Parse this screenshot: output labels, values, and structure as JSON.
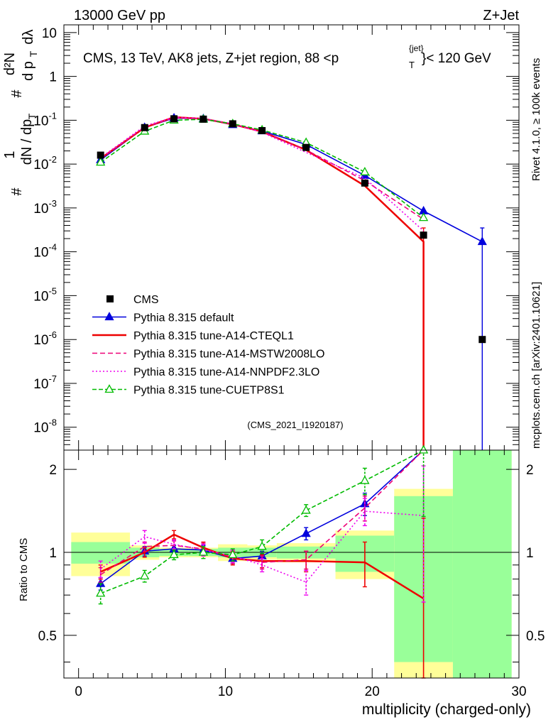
{
  "header": {
    "left": "13000 GeV pp",
    "right": "Z+Jet"
  },
  "side_labels": {
    "rivet": "Rivet 4.1.0, ≥ 100k events",
    "mcplots": "mcplots.cern.ch [arXiv:2401.10621]"
  },
  "chart_data": {
    "type": "line",
    "title": "CMS, 13 TeV, AK8 jets, Z+jet region, 88 < p_T^{jet} < 120 GeV",
    "title_parts": {
      "main": "CMS, 13 TeV, AK8 jets, Z+jet region, 88 <p",
      "sup": "{jet}",
      "sub": "T",
      "tail": "}< 120 GeV"
    },
    "ylabel_parts": {
      "hash": "#",
      "one": "1",
      "dN": "dN / dp",
      "T": "T",
      "d2N": "d²N",
      "dpdl": "d p",
      "lambda": "dλ"
    },
    "xlabel": "multiplicity (charged-only)",
    "ratio_ylabel": "Ratio to CMS",
    "analysis_id": "(CMS_2021_I1920187)",
    "xlim": [
      -1,
      30
    ],
    "ylim_log": [
      3e-09,
      15
    ],
    "ratio_ylim": [
      0.35,
      2.35
    ],
    "x_ticks": [
      "0",
      "10",
      "20",
      "30"
    ],
    "y_tick_labels": [
      {
        "v": 1e-08,
        "base": "10",
        "exp": "-8"
      },
      {
        "v": 1e-07,
        "base": "10",
        "exp": "-7"
      },
      {
        "v": 1e-06,
        "base": "10",
        "exp": "-6"
      },
      {
        "v": 1e-05,
        "base": "10",
        "exp": "-5"
      },
      {
        "v": 0.0001,
        "base": "10",
        "exp": "-4"
      },
      {
        "v": 0.001,
        "base": "10",
        "exp": "-3"
      },
      {
        "v": 0.01,
        "base": "10",
        "exp": "-2"
      },
      {
        "v": 0.1,
        "base": "10",
        "exp": "-1"
      },
      {
        "v": 1,
        "base": "1",
        "exp": ""
      },
      {
        "v": 10,
        "base": "10",
        "exp": ""
      }
    ],
    "ratio_tick_labels": [
      "0.5",
      "1",
      "2"
    ],
    "legend": [
      "CMS",
      "Pythia 8.315 default",
      "Pythia 8.315 tune-A14-CTEQL1",
      "Pythia 8.315 tune-A14-MSTW2008LO",
      "Pythia 8.315 tune-A14-NNPDF2.3LO",
      "Pythia 8.315 tune-CUETP8S1"
    ],
    "data_bins": [
      {
        "lo": -0.5,
        "hi": 3.5,
        "x": 1.5,
        "y": 0.016,
        "band_in": 0.09,
        "band_out": 0.18
      },
      {
        "lo": 3.5,
        "hi": 5.5,
        "x": 4.5,
        "y": 0.068,
        "band_in": 0.04,
        "band_out": 0.06
      },
      {
        "lo": 5.5,
        "hi": 7.5,
        "x": 6.5,
        "y": 0.108,
        "band_in": 0.03,
        "band_out": 0.04
      },
      {
        "lo": 7.5,
        "hi": 9.5,
        "x": 8.5,
        "y": 0.106,
        "band_in": 0.03,
        "band_out": 0.04
      },
      {
        "lo": 9.5,
        "hi": 11.5,
        "x": 10.5,
        "y": 0.083,
        "band_in": 0.04,
        "band_out": 0.07
      },
      {
        "lo": 11.5,
        "hi": 13.5,
        "x": 12.5,
        "y": 0.058,
        "band_in": 0.04,
        "band_out": 0.06
      },
      {
        "lo": 13.5,
        "hi": 17.5,
        "x": 15.5,
        "y": 0.024,
        "band_in": 0.05,
        "band_out": 0.08
      },
      {
        "lo": 17.5,
        "hi": 21.5,
        "x": 19.5,
        "y": 0.0037,
        "band_in": 0.15,
        "band_out": 0.2
      },
      {
        "lo": 21.5,
        "hi": 25.5,
        "x": 23.5,
        "y": 0.00024,
        "band_in": 0.6,
        "band_out": 0.7
      },
      {
        "lo": 25.5,
        "hi": 29.5,
        "x": 27.5,
        "y": 1e-06,
        "band_in": 5.0,
        "band_out": 5.0
      }
    ],
    "series": [
      {
        "name": "Pythia 8.315 default",
        "color": "#0000dd",
        "dash": "",
        "marker": "triangle-filled",
        "x": [
          1.5,
          4.5,
          6.5,
          8.5,
          10.5,
          12.5,
          15.5,
          19.5,
          23.5,
          27.5
        ],
        "y": [
          0.0125,
          0.068,
          0.112,
          0.108,
          0.079,
          0.057,
          0.028,
          0.0055,
          0.00085,
          0.00017
        ],
        "yerr_hi": [
          null,
          null,
          null,
          null,
          null,
          null,
          null,
          null,
          null,
          0.00035
        ],
        "yerr_lo": [
          null,
          null,
          null,
          null,
          null,
          null,
          null,
          null,
          null,
          3e-09
        ],
        "ratio": [
          0.77,
          1.01,
          1.03,
          1.02,
          0.95,
          0.97,
          1.17,
          1.5,
          3.5,
          null
        ],
        "ratio_err": [
          0.04,
          0.04,
          0.03,
          0.04,
          0.04,
          0.04,
          0.06,
          0.14,
          0.0,
          null
        ]
      },
      {
        "name": "Pythia 8.315 tune-A14-CTEQL1",
        "color": "#ee0000",
        "dash": "",
        "marker": "none",
        "x": [
          1.5,
          4.5,
          6.5,
          8.5,
          10.5,
          12.5,
          15.5,
          19.5,
          23.5,
          23.5
        ],
        "y": [
          0.0135,
          0.068,
          0.118,
          0.108,
          0.081,
          0.055,
          0.021,
          0.0032,
          0.00017,
          3e-09
        ],
        "yerr_hi": [
          null,
          null,
          null,
          null,
          null,
          null,
          null,
          null,
          0.00035,
          null
        ],
        "yerr_lo": [
          null,
          null,
          null,
          null,
          null,
          null,
          null,
          null,
          3e-09,
          null
        ],
        "ratio": [
          0.85,
          1.0,
          1.16,
          1.04,
          0.95,
          0.93,
          0.93,
          0.92,
          0.68,
          null
        ],
        "ratio_err": [
          0.05,
          0.04,
          0.04,
          0.05,
          0.05,
          0.05,
          0.08,
          0.17,
          0.5,
          null
        ]
      },
      {
        "name": "Pythia 8.315 tune-A14-MSTW2008LO",
        "color": "#ee0077",
        "dash": "7,4",
        "marker": "none",
        "x": [
          1.5,
          4.5,
          6.5,
          8.5,
          10.5,
          12.5,
          15.5,
          19.5,
          23.5
        ],
        "y": [
          0.0133,
          0.07,
          0.114,
          0.108,
          0.08,
          0.055,
          0.021,
          0.0042,
          0.00055
        ],
        "yerr_hi": [
          null,
          null,
          null,
          null,
          null,
          null,
          null,
          null,
          null
        ],
        "yerr_lo": [
          null,
          null,
          null,
          null,
          null,
          null,
          null,
          null,
          null
        ],
        "ratio": [
          0.83,
          1.05,
          1.06,
          1.03,
          0.96,
          0.92,
          0.94,
          1.45,
          3.5
        ],
        "ratio_err": [
          0.05,
          0.04,
          0.04,
          0.05,
          0.05,
          0.05,
          0.07,
          0.15,
          0.0
        ]
      },
      {
        "name": "Pythia 8.315 tune-A14-NNPDF2.3LO",
        "color": "#ee00ee",
        "dash": "2,3",
        "marker": "none",
        "x": [
          1.5,
          4.5,
          6.5,
          8.5,
          10.5,
          12.5,
          15.5,
          19.5,
          23.5
        ],
        "y": [
          0.014,
          0.074,
          0.118,
          0.11,
          0.083,
          0.053,
          0.0185,
          0.0048,
          0.0003
        ],
        "yerr_hi": [
          null,
          null,
          null,
          null,
          null,
          null,
          null,
          null,
          null
        ],
        "yerr_lo": [
          null,
          null,
          null,
          null,
          null,
          null,
          null,
          null,
          null
        ],
        "ratio": [
          0.87,
          1.14,
          1.07,
          1.02,
          0.97,
          0.9,
          0.78,
          1.41,
          1.36
        ],
        "ratio_err": [
          0.06,
          0.06,
          0.04,
          0.05,
          0.05,
          0.05,
          0.08,
          0.16,
          0.7
        ]
      },
      {
        "name": "Pythia 8.315 tune-CUETP8S1",
        "color": "#00bb00",
        "dash": "6,3",
        "marker": "triangle-open",
        "x": [
          1.5,
          4.5,
          6.5,
          8.5,
          10.5,
          12.5,
          15.5,
          19.5,
          23.5
        ],
        "y": [
          0.011,
          0.056,
          0.1,
          0.105,
          0.083,
          0.06,
          0.031,
          0.0066,
          0.0006
        ],
        "yerr_hi": [
          null,
          null,
          null,
          null,
          null,
          null,
          null,
          null,
          null
        ],
        "yerr_lo": [
          null,
          null,
          null,
          null,
          null,
          null,
          null,
          null,
          null
        ],
        "ratio": [
          0.71,
          0.82,
          0.98,
          1.0,
          0.98,
          1.05,
          1.42,
          1.82,
          2.35
        ],
        "ratio_err": [
          0.06,
          0.04,
          0.04,
          0.05,
          0.05,
          0.06,
          0.07,
          0.2,
          1.0
        ]
      }
    ],
    "data_marker": {
      "name": "CMS",
      "color": "#000000"
    }
  }
}
